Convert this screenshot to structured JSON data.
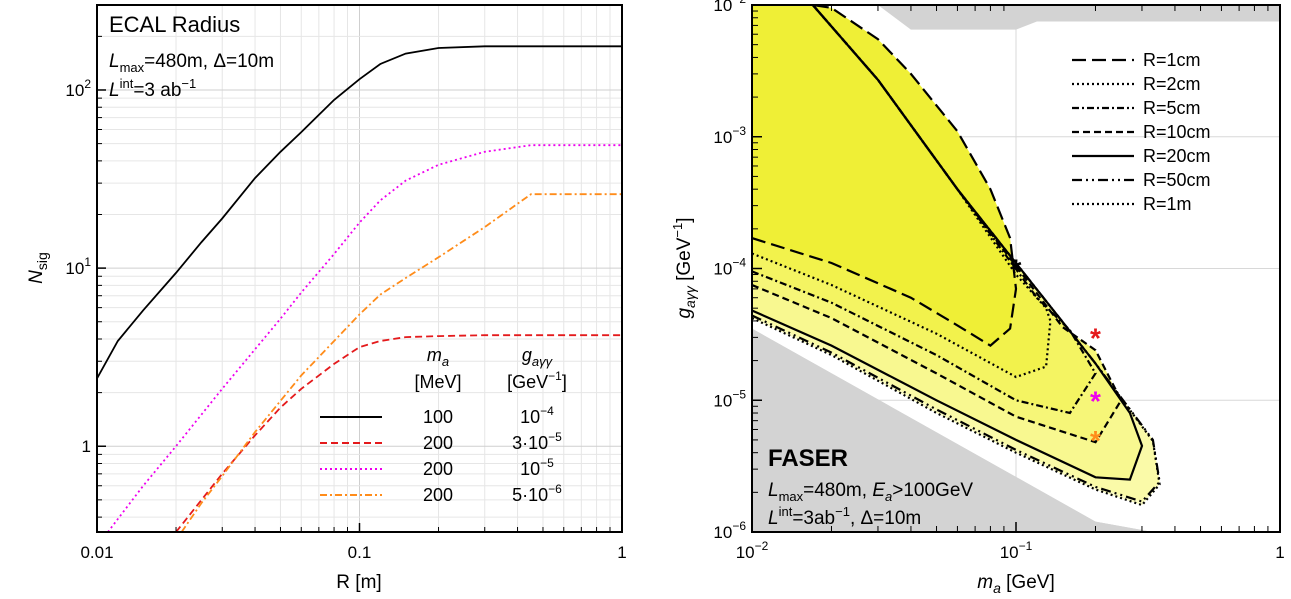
{
  "chart_data": [
    {
      "type": "line",
      "title": "ECAL Radius",
      "annotations": [
        "L_max=480m, Δ=10m",
        "L^int=3 ab^-1"
      ],
      "xlabel": "R [m]",
      "ylabel": "N_sig",
      "xscale": "log",
      "yscale": "log",
      "xlim": [
        0.01,
        1
      ],
      "ylim": [
        0.33,
        300
      ],
      "xticks": [
        "0.01",
        "0.1",
        "1"
      ],
      "yticks": [
        {
          "v": 1,
          "label": "1"
        },
        {
          "v": 10,
          "label": "10^1"
        },
        {
          "v": 100,
          "label": "10^2"
        }
      ],
      "grid": true,
      "legend": {
        "position": "bottom-right",
        "col1_header": "m_a",
        "col1_unit": "[MeV]",
        "col2_header": "g_aγγ",
        "col2_unit": "[GeV^-1]"
      },
      "series": [
        {
          "name": "100",
          "coupling": "10^-4",
          "color": "#000000",
          "dash": "solid",
          "x": [
            0.01,
            0.012,
            0.015,
            0.02,
            0.025,
            0.03,
            0.04,
            0.05,
            0.06,
            0.08,
            0.1,
            0.12,
            0.15,
            0.2,
            0.3,
            0.45,
            1
          ],
          "y": [
            2.4,
            3.9,
            5.8,
            9.4,
            14,
            19,
            32,
            45,
            58,
            88,
            115,
            140,
            160,
            172,
            176,
            176,
            176
          ]
        },
        {
          "name": "200",
          "coupling": "3·10^-5",
          "color": "#e41a1c",
          "dash": "dashed",
          "x": [
            0.02,
            0.025,
            0.03,
            0.04,
            0.05,
            0.06,
            0.08,
            0.1,
            0.12,
            0.15,
            0.2,
            0.3,
            0.45,
            1
          ],
          "y": [
            0.33,
            0.5,
            0.7,
            1.15,
            1.65,
            2.1,
            2.9,
            3.6,
            3.9,
            4.1,
            4.15,
            4.2,
            4.2,
            4.2
          ]
        },
        {
          "name": "200",
          "coupling": "10^-5",
          "color": "#ee00ee",
          "dash": "dotted",
          "x": [
            0.011,
            0.015,
            0.02,
            0.03,
            0.04,
            0.05,
            0.06,
            0.08,
            0.1,
            0.12,
            0.15,
            0.2,
            0.3,
            0.45,
            1
          ],
          "y": [
            0.33,
            0.6,
            1.0,
            2.1,
            3.5,
            5.2,
            7.3,
            12,
            18,
            24,
            31,
            38,
            45,
            49,
            49
          ]
        },
        {
          "name": "200",
          "coupling": "5·10^-6",
          "color": "#ff8c1a",
          "dash": "dashdot",
          "x": [
            0.021,
            0.025,
            0.03,
            0.04,
            0.05,
            0.06,
            0.08,
            0.1,
            0.12,
            0.15,
            0.2,
            0.3,
            0.45,
            1
          ],
          "y": [
            0.33,
            0.48,
            0.68,
            1.2,
            1.8,
            2.5,
            3.9,
            5.5,
            7.1,
            8.8,
            11.5,
            17,
            26,
            26
          ]
        }
      ]
    },
    {
      "type": "line",
      "title": "FASER",
      "annotations": [
        "L_max=480m, E_a>100GeV",
        "L^int=3ab^-1, Δ=10m"
      ],
      "xlabel": "m_a [GeV]",
      "ylabel": "g_aγγ [GeV^-1]",
      "xscale": "log",
      "yscale": "log",
      "xlim": [
        0.01,
        1
      ],
      "ylim": [
        1e-06,
        0.01
      ],
      "xticks": [
        {
          "v": 0.01,
          "label": "10^-2"
        },
        {
          "v": 0.1,
          "label": "10^-1"
        },
        {
          "v": 1,
          "label": "1"
        }
      ],
      "yticks": [
        {
          "v": 1e-06,
          "label": "10^-6"
        },
        {
          "v": 1e-05,
          "label": "10^-5"
        },
        {
          "v": 0.0001,
          "label": "10^-4"
        },
        {
          "v": 0.001,
          "label": "10^-3"
        },
        {
          "v": 0.01,
          "label": "10^-2"
        }
      ],
      "grid": true,
      "legend": {
        "position": "top-right"
      },
      "excluded_regions": [
        {
          "color": "#d3d3d3",
          "x": [
            0.01,
            0.2,
            0.33,
            0.33,
            0.01
          ],
          "y": [
            3.5e-05,
            1.2e-06,
            1e-06,
            1e-06,
            1e-06
          ]
        },
        {
          "color": "#d3d3d3",
          "x": [
            0.03,
            0.04,
            0.1,
            0.12,
            1,
            1,
            0.03
          ],
          "y": [
            0.01,
            0.0065,
            0.0065,
            0.0075,
            0.0075,
            0.01,
            0.01
          ]
        }
      ],
      "series": [
        {
          "name": "R=1cm",
          "dash": "longdash",
          "x": [
            0.01,
            0.02,
            0.04,
            0.06,
            0.08,
            0.095,
            0.1,
            0.095,
            0.08,
            0.06,
            0.04,
            0.03,
            0.02,
            0.017
          ],
          "y": [
            0.00017,
            0.00011,
            6e-05,
            3.7e-05,
            2.6e-05,
            3.5e-05,
            7e-05,
            0.00017,
            0.0004,
            0.0011,
            0.003,
            0.0055,
            0.0095,
            0.01
          ]
        },
        {
          "name": "R=2cm",
          "dash": "dotted",
          "x": [
            0.01,
            0.02,
            0.05,
            0.1,
            0.13,
            0.135,
            0.13,
            0.1,
            0.06,
            0.03,
            0.017
          ],
          "y": [
            0.00013,
            7.5e-05,
            3.2e-05,
            1.5e-05,
            1.8e-05,
            4e-05,
            5e-05,
            9e-05,
            0.0004,
            0.0027,
            0.01
          ]
        },
        {
          "name": "R=5cm",
          "dash": "dashdot",
          "x": [
            0.01,
            0.02,
            0.05,
            0.1,
            0.16,
            0.2,
            0.16,
            0.12,
            0.06,
            0.03,
            0.017
          ],
          "y": [
            9.5e-05,
            5.5e-05,
            2.2e-05,
            1e-05,
            8e-06,
            1.6e-05,
            3.4e-05,
            6e-05,
            0.0004,
            0.0027,
            0.01
          ]
        },
        {
          "name": "R=10cm",
          "dash": "dashed",
          "x": [
            0.01,
            0.02,
            0.05,
            0.1,
            0.2,
            0.25,
            0.2,
            0.15,
            0.06,
            0.03,
            0.017
          ],
          "y": [
            7.5e-05,
            4.2e-05,
            1.6e-05,
            7.5e-06,
            4.8e-06,
            1e-05,
            2.4e-05,
            3.6e-05,
            0.0004,
            0.0027,
            0.01
          ]
        },
        {
          "name": "R=20cm",
          "dash": "solid",
          "x": [
            0.01,
            0.02,
            0.05,
            0.1,
            0.2,
            0.27,
            0.3,
            0.27,
            0.2,
            0.06,
            0.03,
            0.017
          ],
          "y": [
            4.8e-05,
            2.6e-05,
            1e-05,
            5e-06,
            2.6e-06,
            2.5e-06,
            4.5e-06,
            8e-06,
            1.9e-05,
            0.0004,
            0.0027,
            0.01
          ]
        },
        {
          "name": "R=50cm",
          "dash": "dashdotdot",
          "x": [
            0.01,
            0.02,
            0.05,
            0.1,
            0.2,
            0.3,
            0.35,
            0.33,
            0.2,
            0.06,
            0.03,
            0.017
          ],
          "y": [
            4.4e-05,
            2.3e-05,
            8.5e-06,
            4.2e-06,
            2.2e-06,
            1.7e-06,
            2.4e-06,
            5e-06,
            1.9e-05,
            0.0004,
            0.0027,
            0.01
          ]
        },
        {
          "name": "R=1m",
          "dash": "dotted",
          "x": [
            0.01,
            0.02,
            0.05,
            0.1,
            0.2,
            0.3,
            0.35,
            0.33,
            0.2,
            0.06,
            0.03,
            0.017
          ],
          "y": [
            4.2e-05,
            2.2e-05,
            8e-06,
            4e-06,
            2.1e-06,
            1.6e-06,
            2.3e-06,
            4.9e-06,
            1.9e-05,
            0.0004,
            0.0027,
            0.01
          ]
        }
      ],
      "benchmarks": [
        {
          "x": 0.1,
          "y": 0.0001,
          "color": "#000000"
        },
        {
          "x": 0.2,
          "y": 3e-05,
          "color": "#e41a1c"
        },
        {
          "x": 0.2,
          "y": 1e-05,
          "color": "#ee00ee"
        },
        {
          "x": 0.2,
          "y": 5e-06,
          "color": "#ff8c1a"
        }
      ]
    }
  ]
}
